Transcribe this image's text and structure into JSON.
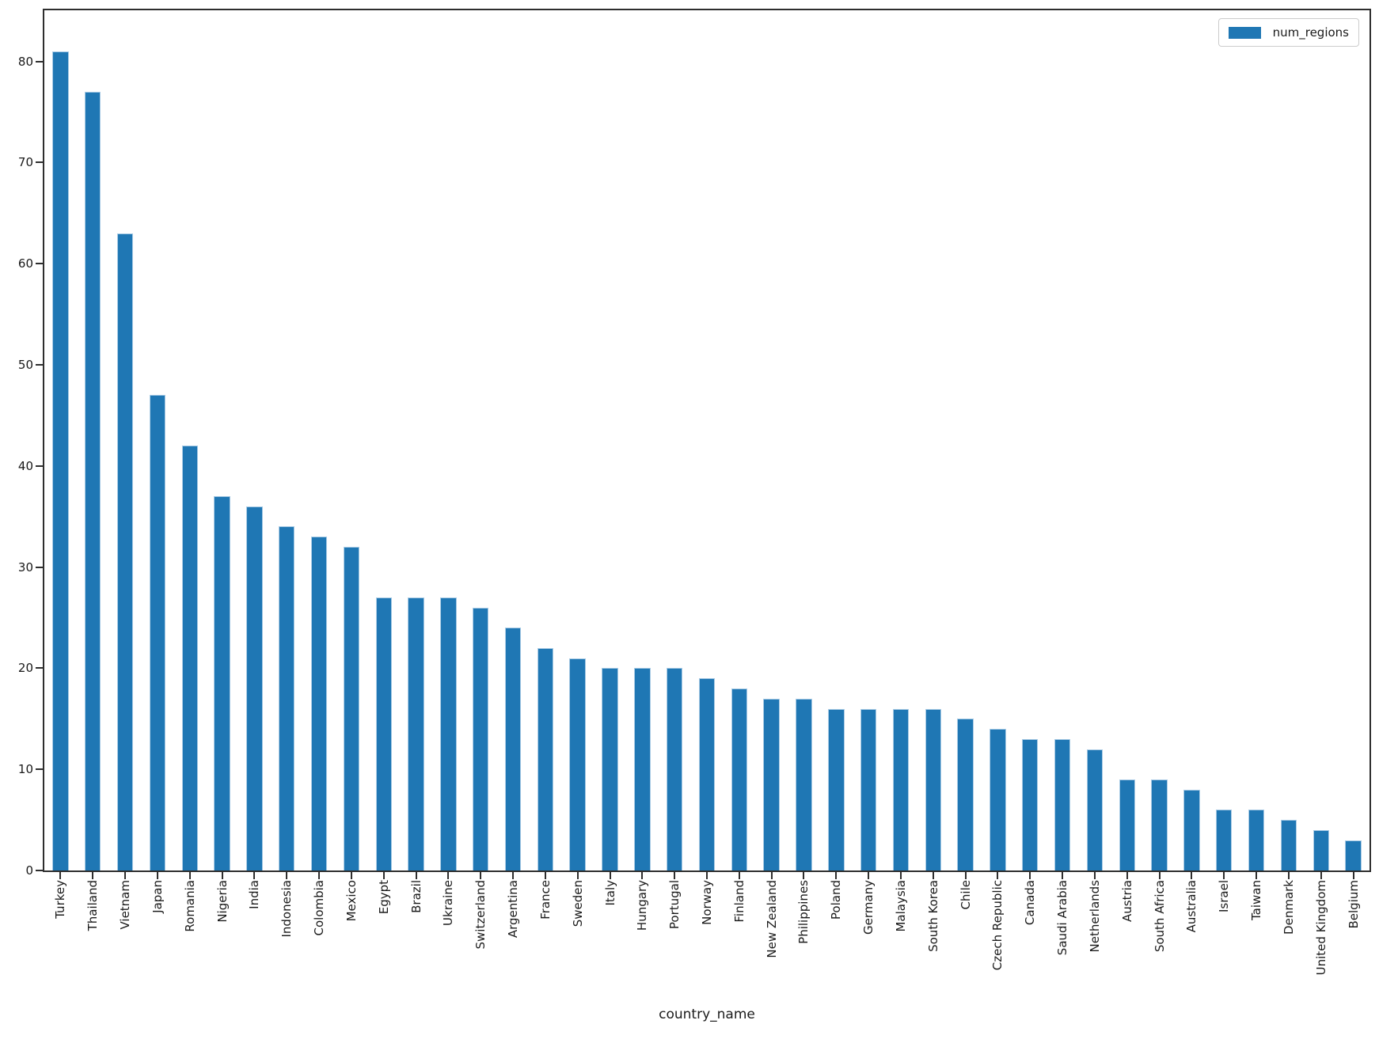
{
  "chart_data": {
    "type": "bar",
    "title": "",
    "xlabel": "country_name",
    "ylabel": "",
    "categories": [
      "Turkey",
      "Thailand",
      "Vietnam",
      "Japan",
      "Romania",
      "Nigeria",
      "India",
      "Indonesia",
      "Colombia",
      "Mexico",
      "Egypt",
      "Brazil",
      "Ukraine",
      "Switzerland",
      "Argentina",
      "France",
      "Sweden",
      "Italy",
      "Hungary",
      "Portugal",
      "Norway",
      "Finland",
      "New Zealand",
      "Philippines",
      "Poland",
      "Germany",
      "Malaysia",
      "South Korea",
      "Chile",
      "Czech Republic",
      "Canada",
      "Saudi Arabia",
      "Netherlands",
      "Austria",
      "South Africa",
      "Australia",
      "Israel",
      "Taiwan",
      "Denmark",
      "United Kingdom",
      "Belgium"
    ],
    "series": [
      {
        "name": "num_regions",
        "color": "#1f77b4",
        "values": [
          81,
          77,
          63,
          47,
          42,
          37,
          36,
          34,
          33,
          32,
          27,
          27,
          27,
          26,
          24,
          22,
          21,
          20,
          20,
          20,
          19,
          18,
          17,
          17,
          16,
          16,
          16,
          16,
          15,
          14,
          13,
          13,
          12,
          9,
          9,
          8,
          6,
          6,
          5,
          4,
          3
        ]
      }
    ],
    "yticks": [
      0,
      10,
      20,
      30,
      40,
      50,
      60,
      70,
      80
    ],
    "ylim": [
      0,
      85.05
    ],
    "bar_width_fraction": 0.5,
    "grid": false,
    "legend": {
      "position": "upper right",
      "entries": [
        "num_regions"
      ]
    },
    "colors": {
      "bar": "#1f77b4",
      "spine": "#2e2e2e",
      "text": "#1a1a1a",
      "legend_border": "#cccccc"
    }
  }
}
